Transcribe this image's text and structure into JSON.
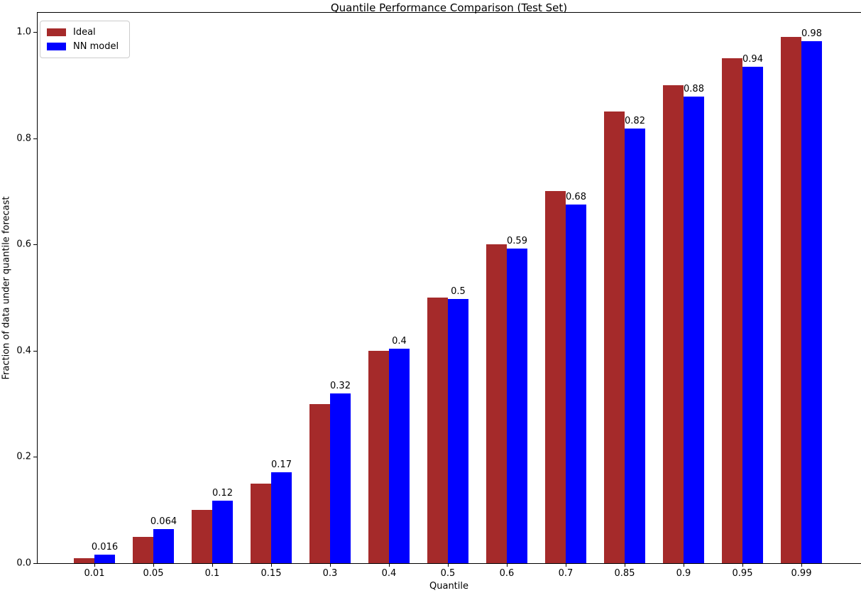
{
  "chart_data": {
    "type": "bar",
    "title": "Quantile Performance Comparison (Test Set)",
    "xlabel": "Quantile",
    "ylabel": "Fraction of data under quantile forecast",
    "categories": [
      "0.01",
      "0.05",
      "0.1",
      "0.15",
      "0.3",
      "0.4",
      "0.5",
      "0.6",
      "0.7",
      "0.85",
      "0.9",
      "0.95",
      "0.99"
    ],
    "series": [
      {
        "name": "Ideal",
        "color": "#A52A2A",
        "values": [
          0.01,
          0.05,
          0.1,
          0.15,
          0.3,
          0.4,
          0.5,
          0.6,
          0.7,
          0.85,
          0.9,
          0.95,
          0.99
        ]
      },
      {
        "name": "NN model",
        "color": "#0000FF",
        "values": [
          0.016,
          0.064,
          0.117,
          0.171,
          0.319,
          0.404,
          0.497,
          0.592,
          0.675,
          0.818,
          0.878,
          0.935,
          0.983
        ],
        "bar_labels": [
          "0.016",
          "0.064",
          "0.12",
          "0.17",
          "0.32",
          "0.4",
          "0.5",
          "0.59",
          "0.68",
          "0.82",
          "0.88",
          "0.94",
          "0.98"
        ]
      }
    ],
    "yticks": [
      "0.0",
      "0.2",
      "0.4",
      "0.6",
      "0.8",
      "1.0"
    ],
    "ytick_values": [
      0.0,
      0.2,
      0.4,
      0.6,
      0.8,
      1.0
    ],
    "ylim": [
      0,
      1.037
    ],
    "legend_position": "upper left",
    "grid": false,
    "background_color": "#ffffff",
    "text_color": "#000000"
  }
}
